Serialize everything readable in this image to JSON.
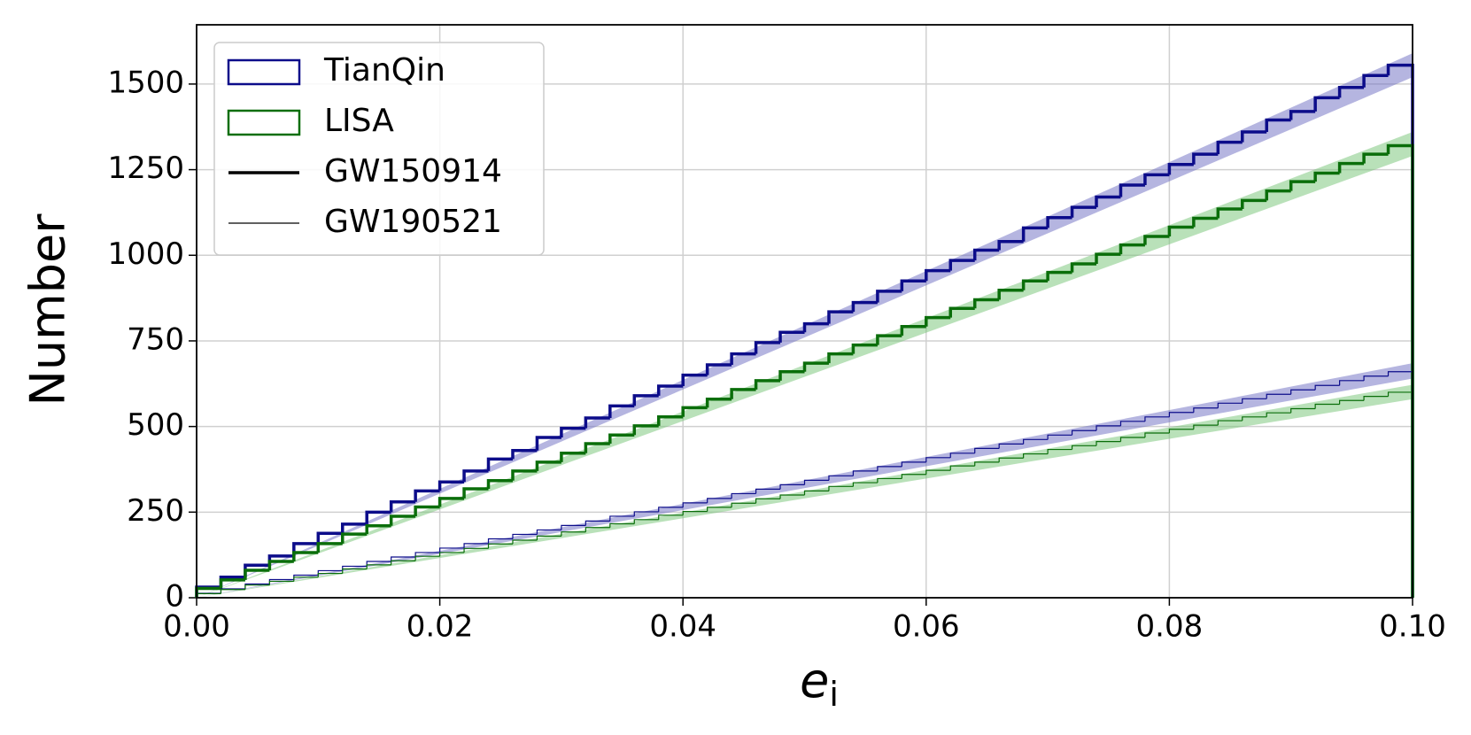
{
  "chart_data": {
    "type": "histogram",
    "xlabel": {
      "main": "e",
      "sub": "i"
    },
    "ylabel": "Number",
    "bins": [
      0,
      0.002,
      0.004,
      0.006,
      0.008,
      0.01,
      0.012,
      0.014,
      0.016,
      0.018,
      0.02,
      0.022,
      0.024,
      0.026,
      0.028,
      0.03,
      0.032,
      0.034,
      0.036,
      0.038,
      0.04,
      0.042,
      0.044,
      0.046,
      0.048,
      0.05,
      0.052,
      0.054,
      0.056,
      0.058,
      0.06,
      0.062,
      0.064,
      0.066,
      0.068,
      0.07,
      0.072,
      0.074,
      0.076,
      0.078,
      0.08,
      0.082,
      0.084,
      0.086,
      0.088,
      0.09,
      0.092,
      0.094,
      0.096,
      0.098,
      0.1
    ],
    "xlim": [
      0,
      0.1
    ],
    "xticks": [
      {
        "value": 0,
        "label": "0.00"
      },
      {
        "value": 0.02,
        "label": "0.02"
      },
      {
        "value": 0.04,
        "label": "0.04"
      },
      {
        "value": 0.06,
        "label": "0.06"
      },
      {
        "value": 0.08,
        "label": "0.08"
      },
      {
        "value": 0.1,
        "label": "0.10"
      }
    ],
    "ylim": [
      0,
      1673
    ],
    "yticks": [
      0,
      250,
      500,
      750,
      1000,
      1250,
      1500
    ],
    "grid": true,
    "legend_position": "upper-left",
    "band_x": [
      0,
      0.1
    ],
    "legend": [
      {
        "label": "TianQin",
        "color": "#0c0c8a"
      },
      {
        "label": "LISA",
        "color": "#0a6e0a"
      },
      {
        "label": "GW150914",
        "linewidth": 3.5
      },
      {
        "label": "GW190521",
        "linewidth": 1.2
      }
    ],
    "series": [
      {
        "color": "#0c0c8a",
        "band_color": "#6b6bc2",
        "linewidth": 3.5,
        "band_low": [
          0,
          1520
        ],
        "band_high": [
          0,
          1590
        ],
        "values": [
          31,
          60,
          95,
          122,
          158,
          188,
          215,
          250,
          280,
          312,
          338,
          370,
          405,
          430,
          468,
          495,
          525,
          560,
          590,
          618,
          650,
          680,
          712,
          745,
          775,
          800,
          835,
          862,
          895,
          925,
          955,
          985,
          1015,
          1040,
          1080,
          1110,
          1140,
          1170,
          1205,
          1235,
          1265,
          1295,
          1330,
          1360,
          1395,
          1420,
          1460,
          1490,
          1525,
          1555
        ]
      },
      {
        "color": "#0a6e0a",
        "band_color": "#74c474",
        "linewidth": 3.5,
        "band_low": [
          0,
          1290
        ],
        "band_high": [
          0,
          1360
        ],
        "values": [
          27,
          52,
          80,
          106,
          132,
          158,
          186,
          210,
          238,
          265,
          290,
          318,
          342,
          370,
          396,
          422,
          450,
          475,
          502,
          528,
          555,
          580,
          608,
          634,
          660,
          685,
          712,
          738,
          765,
          792,
          818,
          845,
          870,
          898,
          925,
          950,
          975,
          1003,
          1030,
          1055,
          1082,
          1108,
          1135,
          1160,
          1188,
          1215,
          1240,
          1268,
          1295,
          1320
        ]
      },
      {
        "color": "#0c0c8a",
        "band_color": "#6b6bc2",
        "linewidth": 1.2,
        "band_low": [
          0,
          640
        ],
        "band_high": [
          0,
          685
        ],
        "values": [
          13,
          26,
          40,
          53,
          66,
          79,
          92,
          106,
          119,
          132,
          145,
          158,
          172,
          185,
          198,
          211,
          224,
          238,
          251,
          264,
          277,
          290,
          304,
          317,
          330,
          343,
          356,
          370,
          383,
          396,
          409,
          422,
          436,
          449,
          462,
          475,
          488,
          502,
          515,
          528,
          541,
          554,
          568,
          581,
          594,
          607,
          620,
          634,
          647,
          660
        ]
      },
      {
        "color": "#0a6e0a",
        "band_color": "#74c474",
        "linewidth": 1.2,
        "band_low": [
          0,
          580
        ],
        "band_high": [
          0,
          622
        ],
        "values": [
          12,
          24,
          37,
          48,
          60,
          71,
          84,
          96,
          108,
          121,
          132,
          144,
          157,
          168,
          180,
          192,
          205,
          216,
          228,
          241,
          252,
          264,
          276,
          289,
          300,
          312,
          325,
          336,
          348,
          360,
          372,
          385,
          396,
          408,
          420,
          433,
          444,
          456,
          468,
          481,
          492,
          504,
          517,
          528,
          540,
          552,
          565,
          576,
          588,
          600
        ]
      }
    ]
  }
}
